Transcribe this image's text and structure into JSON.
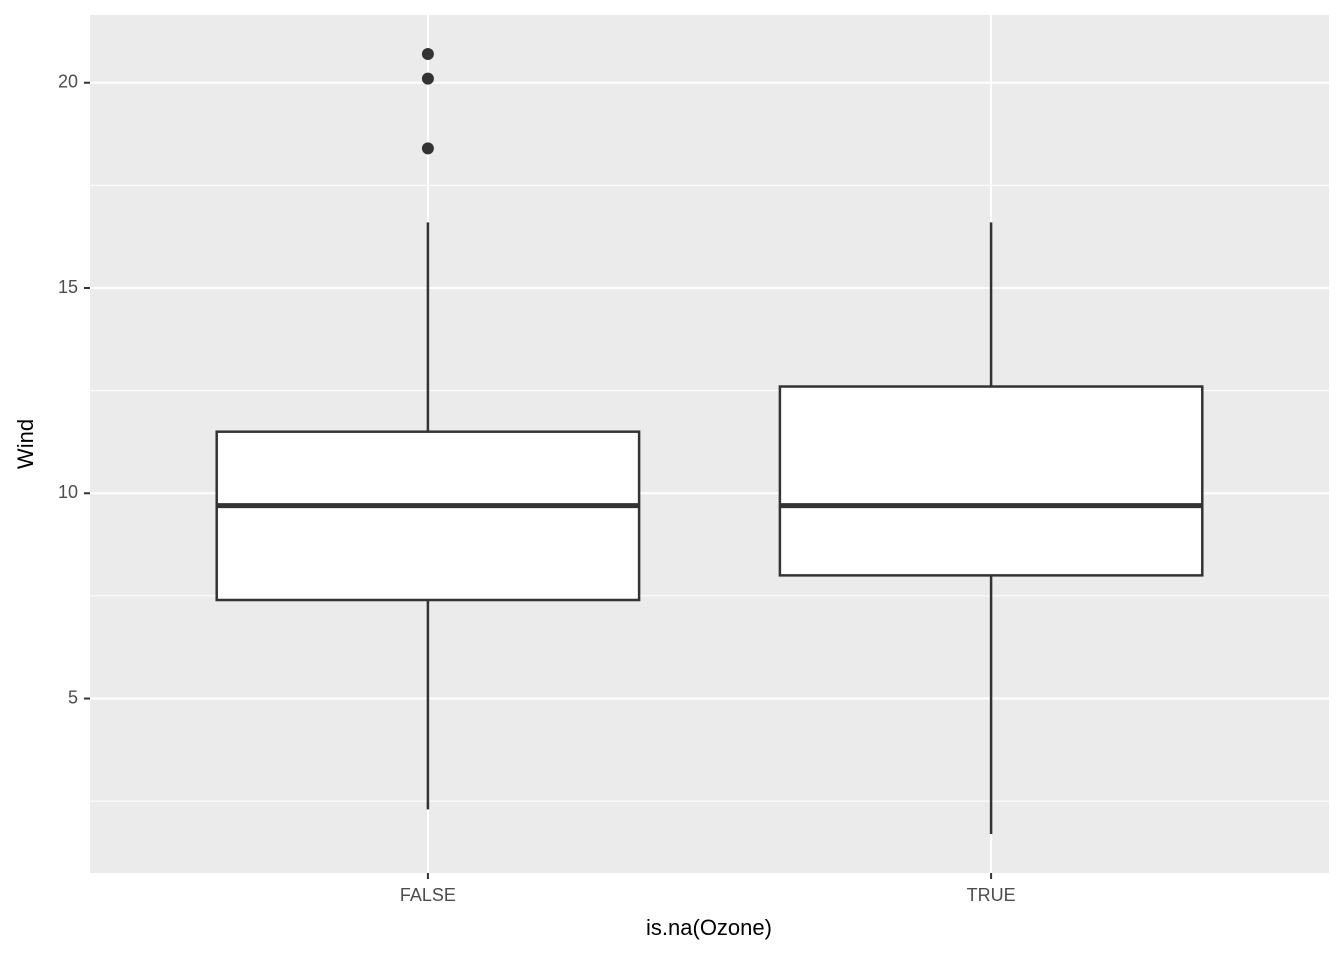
{
  "chart_data": {
    "type": "box",
    "x_label": "is.na(Ozone)",
    "y_label": "Wind",
    "categories": [
      "FALSE",
      "TRUE"
    ],
    "boxes": [
      {
        "low": 2.3,
        "q1": 7.4,
        "median": 9.7,
        "q3": 11.5,
        "high": 16.6,
        "outliers": [
          18.4,
          20.1,
          20.7
        ]
      },
      {
        "low": 1.7,
        "q1": 8.0,
        "median": 9.7,
        "q3": 12.6,
        "high": 16.6,
        "outliers": []
      }
    ],
    "ylim": [
      0.75,
      21.65
    ],
    "yticks": [
      5,
      10,
      15,
      20
    ],
    "minor_yticks": [
      2.5,
      7.5,
      12.5,
      17.5
    ],
    "grid": true,
    "panel_color": "#ebebeb",
    "box_fill": "#ffffff",
    "line_color": "#333333"
  }
}
